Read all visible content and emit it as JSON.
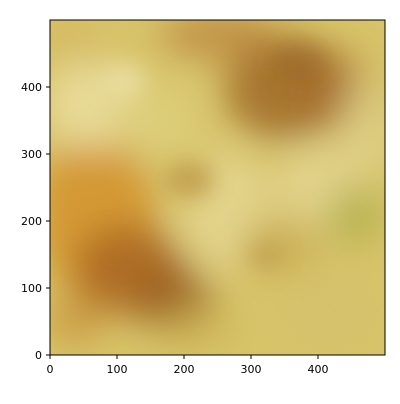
{
  "chart_data": {
    "type": "heatmap",
    "title": "",
    "xlabel": "",
    "ylabel": "",
    "xlim": [
      0,
      500
    ],
    "ylim": [
      0,
      500
    ],
    "x_ticks": [
      0,
      100,
      200,
      300,
      400
    ],
    "y_ticks": [
      0,
      100,
      200,
      300,
      400
    ],
    "x_tick_labels": [
      "0",
      "100",
      "200",
      "300",
      "400"
    ],
    "y_tick_labels": [
      "0",
      "100",
      "200",
      "300",
      "400"
    ],
    "grid": false,
    "image_description_palette": {
      "base": "#d8c46a",
      "dark_brown": "#8f5417",
      "orange": "#d4912c",
      "light_yellow": "#e8df9e",
      "olive": "#a8aa45"
    }
  }
}
